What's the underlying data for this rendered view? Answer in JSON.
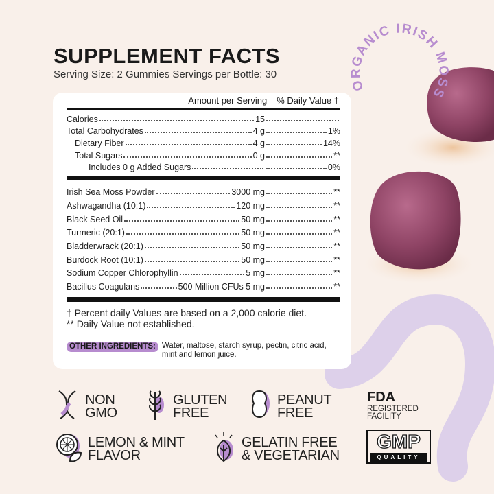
{
  "title": "SUPPLEMENT FACTS",
  "serving": "Serving Size: 2 Gummies  Servings per Bottle: 30",
  "stamp": "ORGANIC IRISH MOSS",
  "header": {
    "amount": "Amount per Serving",
    "dv": "% Daily Value †"
  },
  "nutrients": [
    {
      "name": "Calories",
      "amount": "15",
      "dv": ""
    },
    {
      "name": "Total Carbohydrates",
      "amount": "4 g",
      "dv": "1%"
    },
    {
      "name": "Dietary Fiber",
      "amount": "4 g",
      "dv": "14%"
    },
    {
      "name": "Total Sugars",
      "amount": "0 g",
      "dv": "**"
    },
    {
      "name": "Includes 0 g Added Sugars",
      "amount": "",
      "dv": "0%"
    }
  ],
  "ingredients": [
    {
      "name": "Irish Sea Moss Powder",
      "amount": "3000 mg",
      "dv": "**"
    },
    {
      "name": "Ashwagandha (10:1)",
      "amount": "120 mg",
      "dv": "**"
    },
    {
      "name": "Black Seed Oil",
      "amount": "50 mg",
      "dv": "**"
    },
    {
      "name": "Turmeric (20:1)",
      "amount": "50 mg",
      "dv": "**"
    },
    {
      "name": "Bladderwrack (20:1)",
      "amount": "50 mg",
      "dv": "**"
    },
    {
      "name": "Burdock Root (10:1)",
      "amount": "50 mg",
      "dv": "**"
    },
    {
      "name": "Sodium Copper Chlorophyllin",
      "amount": "5 mg",
      "dv": "**"
    },
    {
      "name": "Bacillus Coagulans",
      "amount": "500 Million CFUs 5 mg",
      "dv": "**"
    }
  ],
  "footnotes": [
    "† Percent daily Values are based on a 2,000 calorie diet.",
    "** Daily Value not established."
  ],
  "other": {
    "label": "OTHER INGREDIENTS:",
    "text": "Water, maltose, starch syrup, pectin, citric acid, mint and lemon juice."
  },
  "badges": [
    {
      "icon": "dna-icon",
      "l1": "NON",
      "l2": "GMO"
    },
    {
      "icon": "wheat-icon",
      "l1": "GLUTEN",
      "l2": "FREE"
    },
    {
      "icon": "peanut-icon",
      "l1": "PEANUT",
      "l2": "FREE"
    },
    {
      "icon": "lemon-icon",
      "l1": "LEMON & MINT",
      "l2": "FLAVOR"
    },
    {
      "icon": "leaf-icon",
      "l1": "GELATIN FREE",
      "l2": "& VEGETARIAN"
    }
  ],
  "fda": {
    "title": "FDA",
    "l1": "REGISTERED",
    "l2": "FACILITY"
  },
  "gmp": {
    "title": "GMP",
    "sub": "QUALITY"
  },
  "colors": {
    "accent": "#b78ccf",
    "background": "#f9f0ea",
    "gummy": "#9a4f6e",
    "wave": "#ddd0ea"
  }
}
